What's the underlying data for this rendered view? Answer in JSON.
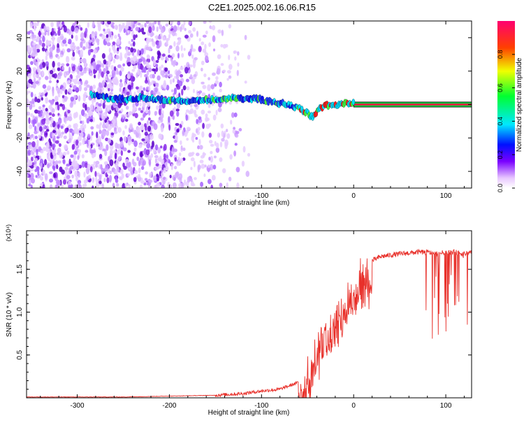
{
  "title": "C2E1.2025.002.16.06.R15",
  "chart_data": [
    {
      "type": "heatmap",
      "xlabel": "Height of straight line (km)",
      "ylabel": "Frequency (Hz)",
      "xlim": [
        -355,
        128
      ],
      "ylim": [
        -50,
        50
      ],
      "xticks": [
        -300,
        -200,
        -100,
        0,
        100
      ],
      "yticks": [
        -40,
        -20,
        0,
        20,
        40
      ],
      "colorbar": {
        "label": "Normalized spectral amplitude",
        "range": [
          0,
          1
        ],
        "ticks": [
          0.0,
          0.2,
          0.4,
          0.6,
          0.8
        ]
      },
      "signal_trace": [
        {
          "x": -285,
          "y": 6
        },
        {
          "x": -270,
          "y": 4
        },
        {
          "x": -250,
          "y": 3
        },
        {
          "x": -230,
          "y": 4
        },
        {
          "x": -210,
          "y": 3
        },
        {
          "x": -190,
          "y": 2
        },
        {
          "x": -175,
          "y": 2
        },
        {
          "x": -150,
          "y": 3
        },
        {
          "x": -125,
          "y": 4
        },
        {
          "x": -100,
          "y": 3
        },
        {
          "x": -85,
          "y": 1
        },
        {
          "x": -72,
          "y": 0
        },
        {
          "x": -60,
          "y": -2
        },
        {
          "x": -50,
          "y": -5
        },
        {
          "x": -45,
          "y": -8
        },
        {
          "x": -38,
          "y": -3
        },
        {
          "x": -30,
          "y": 0
        },
        {
          "x": -20,
          "y": -1
        },
        {
          "x": -10,
          "y": 1
        },
        {
          "x": 0,
          "y": 1
        },
        {
          "x": 40,
          "y": 0
        },
        {
          "x": 80,
          "y": 0
        },
        {
          "x": 128,
          "y": 0
        }
      ]
    },
    {
      "type": "line",
      "xlabel": "Height of straight line (km)",
      "ylabel": "SNR (10 * v/v)",
      "scale_note": "(x10⁴)",
      "xlim": [
        -355,
        128
      ],
      "ylim": [
        0,
        1.95
      ],
      "xticks": [
        -300,
        -200,
        -100,
        0,
        100
      ],
      "yticks": [
        0.5,
        1.0,
        1.5
      ],
      "color": "#e8302a",
      "series": [
        {
          "x": [
            -355,
            -300,
            -250,
            -200,
            -150,
            -120,
            -100,
            -80,
            -60,
            -50,
            -40,
            -30,
            -20,
            -10,
            0,
            10,
            20,
            30,
            50,
            70,
            80,
            90,
            100,
            110,
            120,
            128
          ],
          "y": [
            0.01,
            0.01,
            0.01,
            0.02,
            0.03,
            0.05,
            0.08,
            0.1,
            0.18,
            0.3,
            0.6,
            0.85,
            1.0,
            1.15,
            1.35,
            1.5,
            1.6,
            1.65,
            1.68,
            1.7,
            1.7,
            1.68,
            1.7,
            1.7,
            1.68,
            1.7
          ]
        }
      ]
    }
  ]
}
